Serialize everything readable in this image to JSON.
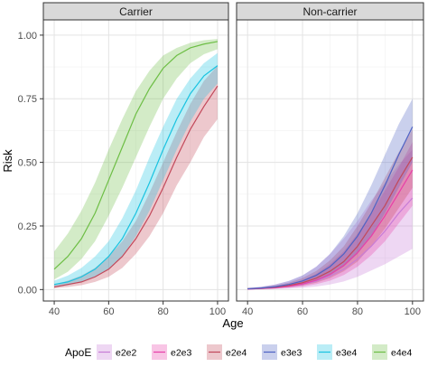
{
  "chart_data": {
    "type": "line",
    "xlabel": "Age",
    "ylabel": "Risk",
    "xlim": [
      36,
      104
    ],
    "ylim": [
      -0.045,
      1.06
    ],
    "x_ticks": [
      40,
      60,
      80,
      100
    ],
    "y_ticks": [
      0.0,
      0.25,
      0.5,
      0.75,
      1.0
    ],
    "y_tick_labels": [
      "0.00",
      "0.25",
      "0.50",
      "0.75",
      "1.00"
    ],
    "x": [
      40,
      45,
      50,
      55,
      60,
      65,
      70,
      75,
      80,
      85,
      90,
      95,
      100
    ],
    "legend": {
      "title": "ApoE",
      "position": "bottom"
    },
    "series_style": [
      {
        "name": "e2e2",
        "color": "#C77CD6"
      },
      {
        "name": "e2e3",
        "color": "#E83FA8"
      },
      {
        "name": "e2e4",
        "color": "#C2485A"
      },
      {
        "name": "e3e3",
        "color": "#4E63C4"
      },
      {
        "name": "e3e4",
        "color": "#19C3E0"
      },
      {
        "name": "e4e4",
        "color": "#6DBE45"
      }
    ],
    "panels": [
      {
        "title": "Carrier",
        "series": [
          {
            "name": "e2e4",
            "values": [
              0.01,
              0.02,
              0.03,
              0.05,
              0.08,
              0.13,
              0.2,
              0.29,
              0.4,
              0.52,
              0.63,
              0.72,
              0.8
            ],
            "lower": [
              0.005,
              0.01,
              0.017,
              0.03,
              0.05,
              0.085,
              0.14,
              0.21,
              0.3,
              0.41,
              0.5,
              0.6,
              0.67
            ],
            "upper": [
              0.02,
              0.035,
              0.055,
              0.085,
              0.13,
              0.19,
              0.27,
              0.38,
              0.5,
              0.62,
              0.73,
              0.82,
              0.88
            ]
          },
          {
            "name": "e3e4",
            "values": [
              0.02,
              0.03,
              0.05,
              0.08,
              0.13,
              0.2,
              0.3,
              0.42,
              0.55,
              0.67,
              0.77,
              0.84,
              0.88
            ],
            "lower": [
              0.01,
              0.017,
              0.03,
              0.05,
              0.08,
              0.13,
              0.21,
              0.31,
              0.43,
              0.55,
              0.66,
              0.75,
              0.81
            ],
            "upper": [
              0.035,
              0.055,
              0.085,
              0.13,
              0.19,
              0.28,
              0.39,
              0.52,
              0.64,
              0.75,
              0.83,
              0.89,
              0.93
            ]
          },
          {
            "name": "e4e4",
            "values": [
              0.08,
              0.13,
              0.2,
              0.3,
              0.43,
              0.56,
              0.69,
              0.79,
              0.87,
              0.92,
              0.95,
              0.965,
              0.975
            ],
            "lower": [
              0.04,
              0.07,
              0.12,
              0.19,
              0.29,
              0.4,
              0.52,
              0.64,
              0.75,
              0.83,
              0.89,
              0.925,
              0.945
            ],
            "upper": [
              0.15,
              0.22,
              0.31,
              0.42,
              0.55,
              0.67,
              0.78,
              0.86,
              0.92,
              0.95,
              0.97,
              0.98,
              0.985
            ]
          }
        ]
      },
      {
        "title": "Non-carrier",
        "series": [
          {
            "name": "e2e2",
            "values": [
              0.002,
              0.004,
              0.007,
              0.012,
              0.02,
              0.033,
              0.053,
              0.08,
              0.12,
              0.17,
              0.23,
              0.3,
              0.36
            ],
            "lower": [
              0.0,
              0.001,
              0.002,
              0.004,
              0.007,
              0.012,
              0.02,
              0.032,
              0.05,
              0.075,
              0.1,
              0.13,
              0.16
            ],
            "upper": [
              0.006,
              0.011,
              0.02,
              0.033,
              0.055,
              0.09,
              0.14,
              0.2,
              0.27,
              0.35,
              0.42,
              0.49,
              0.55
            ]
          },
          {
            "name": "e2e3",
            "values": [
              0.002,
              0.004,
              0.007,
              0.013,
              0.022,
              0.037,
              0.06,
              0.095,
              0.145,
              0.21,
              0.29,
              0.38,
              0.47
            ],
            "lower": [
              0.001,
              0.002,
              0.004,
              0.007,
              0.012,
              0.021,
              0.035,
              0.057,
              0.09,
              0.135,
              0.19,
              0.26,
              0.33
            ],
            "upper": [
              0.004,
              0.007,
              0.013,
              0.022,
              0.037,
              0.062,
              0.1,
              0.15,
              0.22,
              0.3,
              0.39,
              0.48,
              0.58
            ]
          },
          {
            "name": "e2e4",
            "values": [
              0.003,
              0.005,
              0.009,
              0.016,
              0.027,
              0.045,
              0.072,
              0.11,
              0.17,
              0.25,
              0.33,
              0.43,
              0.52
            ],
            "lower": [
              0.001,
              0.003,
              0.005,
              0.009,
              0.016,
              0.027,
              0.045,
              0.072,
              0.11,
              0.17,
              0.24,
              0.32,
              0.4
            ],
            "upper": [
              0.005,
              0.009,
              0.016,
              0.027,
              0.045,
              0.073,
              0.115,
              0.17,
              0.25,
              0.34,
              0.44,
              0.54,
              0.63
            ]
          },
          {
            "name": "e3e3",
            "values": [
              0.003,
              0.006,
              0.011,
              0.02,
              0.034,
              0.056,
              0.09,
              0.14,
              0.21,
              0.3,
              0.41,
              0.53,
              0.64
            ],
            "lower": [
              0.001,
              0.003,
              0.006,
              0.011,
              0.02,
              0.034,
              0.056,
              0.09,
              0.14,
              0.21,
              0.3,
              0.4,
              0.5
            ],
            "upper": [
              0.006,
              0.011,
              0.02,
              0.034,
              0.056,
              0.09,
              0.14,
              0.21,
              0.3,
              0.41,
              0.53,
              0.65,
              0.75
            ]
          }
        ]
      }
    ]
  }
}
